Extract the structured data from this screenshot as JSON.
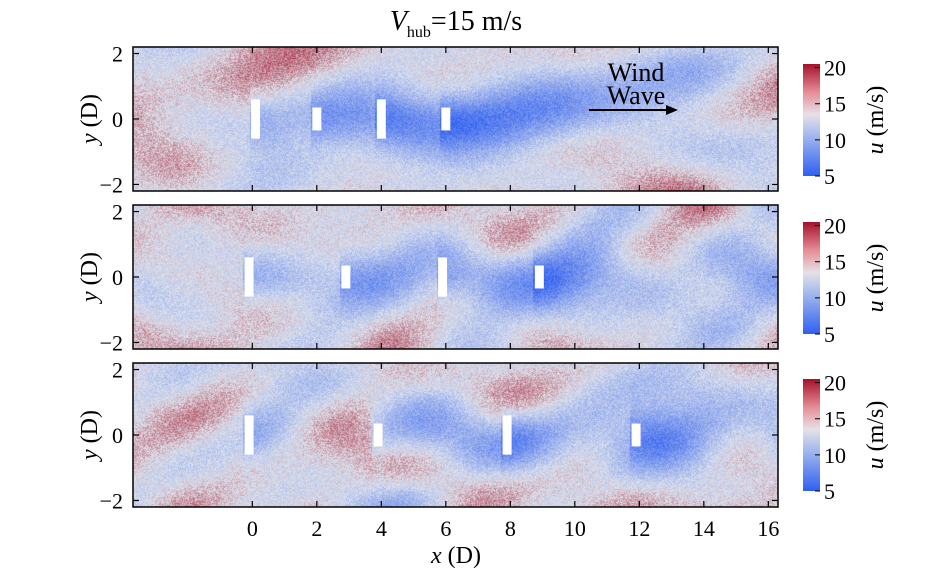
{
  "title": {
    "var": "V",
    "sub": "hub",
    "rest": "=15 m/s"
  },
  "annotations": {
    "wind": "Wind",
    "wave": "Wave"
  },
  "colormap": {
    "low": "#2f5ff0",
    "mid": "#dfe3ec",
    "high": "#a3122a",
    "min": 5,
    "max": 20.5,
    "mean": 14.5
  },
  "chart_data": [
    {
      "type": "heatmap",
      "xlabel": {
        "var": "x",
        "unit": "(D)"
      },
      "ylabel": {
        "var": "y",
        "unit": "(D)"
      },
      "xlim": [
        -3.7,
        16.3
      ],
      "ylim": [
        -2.2,
        2.2
      ],
      "x_ticks": [
        0,
        2,
        4,
        6,
        8,
        10,
        12,
        14,
        16
      ],
      "show_x_tick_labels": false,
      "y_ticks": [
        -2,
        0,
        2
      ],
      "y_tick_labels": [
        "−2",
        "0",
        "2"
      ],
      "colorbar": {
        "label_var": "u",
        "label_unit": "(m/s)",
        "ticks": [
          5,
          10,
          15,
          20
        ]
      },
      "turbines": [
        {
          "x": 0.1,
          "y_min": -0.6,
          "y_max": 0.6
        },
        {
          "x": 2.0,
          "y_min": -0.35,
          "y_max": 0.35
        },
        {
          "x": 4.0,
          "y_min": -0.6,
          "y_max": 0.6
        },
        {
          "x": 6.0,
          "y_min": -0.35,
          "y_max": 0.35
        }
      ]
    },
    {
      "type": "heatmap",
      "xlabel": {
        "var": "x",
        "unit": "(D)"
      },
      "ylabel": {
        "var": "y",
        "unit": "(D)"
      },
      "xlim": [
        -3.7,
        16.3
      ],
      "ylim": [
        -2.2,
        2.2
      ],
      "x_ticks": [
        0,
        2,
        4,
        6,
        8,
        10,
        12,
        14,
        16
      ],
      "show_x_tick_labels": false,
      "y_ticks": [
        -2,
        0,
        2
      ],
      "y_tick_labels": [
        "−2",
        "0",
        "2"
      ],
      "colorbar": {
        "label_var": "u",
        "label_unit": "(m/s)",
        "ticks": [
          5,
          10,
          15,
          20
        ]
      },
      "turbines": [
        {
          "x": -0.1,
          "y_min": -0.6,
          "y_max": 0.6
        },
        {
          "x": 2.9,
          "y_min": -0.35,
          "y_max": 0.35
        },
        {
          "x": 5.9,
          "y_min": -0.6,
          "y_max": 0.6
        },
        {
          "x": 8.9,
          "y_min": -0.35,
          "y_max": 0.35
        }
      ]
    },
    {
      "type": "heatmap",
      "xlabel": {
        "var": "x",
        "unit": "(D)"
      },
      "ylabel": {
        "var": "y",
        "unit": "(D)"
      },
      "xlim": [
        -3.7,
        16.3
      ],
      "ylim": [
        -2.2,
        2.2
      ],
      "x_ticks": [
        0,
        2,
        4,
        6,
        8,
        10,
        12,
        14,
        16
      ],
      "show_x_tick_labels": true,
      "x_tick_labels": [
        "0",
        "2",
        "4",
        "6",
        "8",
        "10",
        "12",
        "14",
        "16"
      ],
      "y_ticks": [
        -2,
        0,
        2
      ],
      "y_tick_labels": [
        "−2",
        "0",
        "2"
      ],
      "colorbar": {
        "label_var": "u",
        "label_unit": "(m/s)",
        "ticks": [
          5,
          10,
          15,
          20
        ]
      },
      "turbines": [
        {
          "x": -0.1,
          "y_min": -0.6,
          "y_max": 0.6
        },
        {
          "x": 3.9,
          "y_min": -0.35,
          "y_max": 0.35
        },
        {
          "x": 7.9,
          "y_min": -0.6,
          "y_max": 0.6
        },
        {
          "x": 11.9,
          "y_min": -0.35,
          "y_max": 0.35
        }
      ]
    }
  ]
}
